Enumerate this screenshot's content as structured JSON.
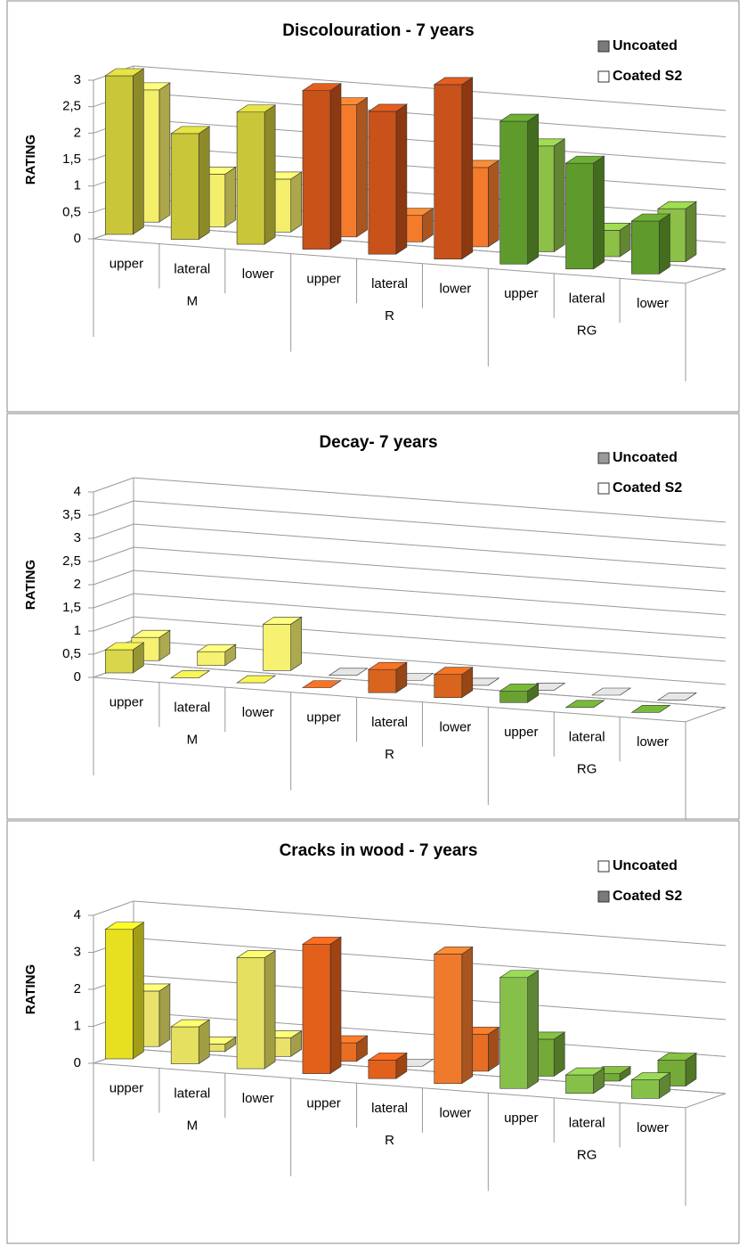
{
  "chart_data": [
    {
      "type": "bar3d",
      "title": "Discolouration - 7 years",
      "y_label": "RATING",
      "categories": [
        "upper",
        "lateral",
        "lower",
        "upper",
        "lateral",
        "lower",
        "upper",
        "lateral",
        "lower"
      ],
      "groups": [
        "M",
        "R",
        "RG"
      ],
      "series": [
        {
          "name": "Uncoated",
          "color": "#7a7a7a",
          "colors": [
            "#c9c63a",
            "#c9c63a",
            "#c9c63a",
            "#c8521a",
            "#c8521a",
            "#c8521a",
            "#5f9a2c",
            "#5f9a2c",
            "#5f9a2c"
          ],
          "values": [
            3,
            2,
            2.5,
            3,
            2.7,
            3.3,
            2.7,
            2,
            1
          ]
        },
        {
          "name": "Coated S2",
          "color": "#ffffff",
          "colors": [
            "#f4ef6a",
            "#f4ef6a",
            "#f4ef6a",
            "#f47a2c",
            "#f47a2c",
            "#f47a2c",
            "#8cc046",
            "#8cc046",
            "#8cc046"
          ],
          "values": [
            2.5,
            1,
            1,
            2.5,
            0.5,
            1.5,
            2,
            0.5,
            1
          ]
        }
      ],
      "ylim": [
        0,
        3
      ],
      "yticks": [
        0,
        {
          "value": 0.5,
          "label": "0,5"
        },
        1,
        {
          "value": 1.5,
          "label": "1,5"
        },
        2,
        {
          "value": 2.5,
          "label": "2,5"
        },
        3
      ],
      "grid": true,
      "legend": "top-right"
    },
    {
      "type": "bar3d",
      "title": "Decay- 7 years",
      "y_label": "RATING",
      "categories": [
        "upper",
        "lateral",
        "lower",
        "upper",
        "lateral",
        "lower",
        "upper",
        "lateral",
        "lower"
      ],
      "groups": [
        "M",
        "R",
        "RG"
      ],
      "series": [
        {
          "name": "Uncoated",
          "color": "#9a9a9a",
          "colors": [
            "#d8d64a",
            "#d8d64a",
            "#d8d64a",
            "#d9641e",
            "#d9641e",
            "#d9641e",
            "#6aa232",
            "#6aa232",
            "#6aa232"
          ],
          "values": [
            0.5,
            0,
            0,
            0,
            0.5,
            0.5,
            0.25,
            0,
            0
          ]
        },
        {
          "name": "Coated S2",
          "color": "#ffffff",
          "colors": [
            "#f6f170",
            "#f6f170",
            "#f6f170",
            "#c8c8c8",
            "#c8c8c8",
            "#c8c8c8",
            "#c8c8c8",
            "#c8c8c8",
            "#c8c8c8"
          ],
          "values": [
            0.5,
            0.3,
            1,
            0,
            0,
            0,
            0,
            0,
            0
          ]
        }
      ],
      "ylim": [
        0,
        4
      ],
      "yticks": [
        0,
        {
          "value": 0.5,
          "label": "0,5"
        },
        1,
        {
          "value": 1.5,
          "label": "1,5"
        },
        2,
        {
          "value": 2.5,
          "label": "2,5"
        },
        3,
        {
          "value": 3.5,
          "label": "3,5"
        },
        4
      ],
      "grid": true,
      "legend": "top-right"
    },
    {
      "type": "bar3d",
      "title": "Cracks in wood - 7 years",
      "y_label": "RATING",
      "categories": [
        "upper",
        "lateral",
        "lower",
        "upper",
        "lateral",
        "lower",
        "upper",
        "lateral",
        "lower"
      ],
      "groups": [
        "M",
        "R",
        "RG"
      ],
      "series": [
        {
          "name": "Uncoated",
          "color": "#ffffff",
          "colors": [
            "#e6e020",
            "#e6e060",
            "#e6e060",
            "#e2601a",
            "#e2601a",
            "#f07a2c",
            "#86c04a",
            "#86c04a",
            "#86c04a"
          ],
          "values": [
            3.5,
            1,
            3,
            3.5,
            0.5,
            3.5,
            3,
            0.5,
            0.5
          ]
        },
        {
          "name": "Coated S2",
          "color": "#7a7a7a",
          "colors": [
            "#e8e26a",
            "#e8e26a",
            "#e8e26a",
            "#e86e24",
            "#c8c8c8",
            "#e86e24",
            "#74aa38",
            "#74aa38",
            "#74aa38"
          ],
          "values": [
            1.5,
            0.2,
            0.5,
            0.5,
            0,
            1,
            1,
            0.2,
            0.7
          ]
        }
      ],
      "ylim": [
        0,
        4
      ],
      "yticks": [
        0,
        1,
        2,
        3,
        4
      ],
      "grid": true,
      "legend": "top-right"
    }
  ]
}
